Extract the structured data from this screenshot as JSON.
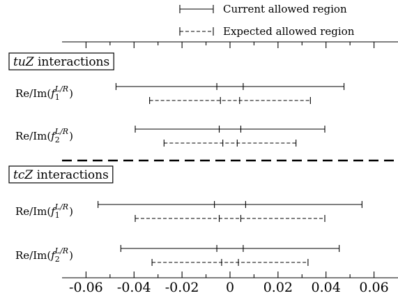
{
  "chart_data": {
    "type": "interval",
    "legend": [
      {
        "label": "Current allowed region",
        "style": "solid"
      },
      {
        "label": "Expected allowed region",
        "style": "dashed"
      }
    ],
    "legend_position": "top-right",
    "x_ticks": [
      -0.06,
      -0.04,
      -0.02,
      0,
      0.02,
      0.04,
      0.06
    ],
    "x_tick_labels": [
      "-0.06",
      "-0.04",
      "-0.02",
      "0",
      "0.02",
      "0.04",
      "0.06"
    ],
    "xlim": [
      -0.07,
      0.07
    ],
    "groups": [
      {
        "title_var": "tuZ",
        "title_suffix": " interactions",
        "rows": [
          {
            "label": "Re/Im(f_1^{L/R})",
            "label_main": "Re/Im(",
            "label_f": "f",
            "label_sub": "1",
            "label_sup": "L/R",
            "label_close": ")",
            "current": [
              -0.0475,
              -0.0055,
              0.0055,
              0.0475
            ],
            "expected": [
              -0.0335,
              -0.004,
              0.004,
              0.0335
            ]
          },
          {
            "label": "Re/Im(f_2^{L/R})",
            "label_main": "Re/Im(",
            "label_f": "f",
            "label_sub": "2",
            "label_sup": "L/R",
            "label_close": ")",
            "current": [
              -0.0395,
              -0.0045,
              0.0045,
              0.0395
            ],
            "expected": [
              -0.0275,
              -0.003,
              0.003,
              0.0275
            ]
          }
        ]
      },
      {
        "title_var": "tcZ",
        "title_suffix": " interactions",
        "rows": [
          {
            "label": "Re/Im(f_1^{L/R})",
            "label_main": "Re/Im(",
            "label_f": "f",
            "label_sub": "1",
            "label_sup": "L/R",
            "label_close": ")",
            "current": [
              -0.055,
              -0.0065,
              0.0065,
              0.055
            ],
            "expected": [
              -0.0395,
              -0.0045,
              0.0045,
              0.0395
            ]
          },
          {
            "label": "Re/Im(f_2^{L/R})",
            "label_main": "Re/Im(",
            "label_f": "f",
            "label_sub": "2",
            "label_sup": "L/R",
            "label_close": ")",
            "current": [
              -0.0455,
              -0.0055,
              0.0055,
              0.0455
            ],
            "expected": [
              -0.0325,
              -0.0035,
              0.0035,
              0.0325
            ]
          }
        ]
      }
    ],
    "grid": false
  }
}
